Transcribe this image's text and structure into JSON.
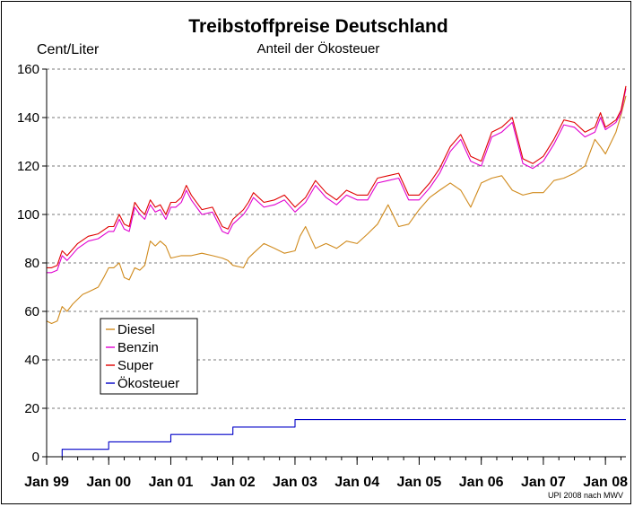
{
  "chart_data": {
    "type": "line",
    "title": "Treibstoffpreise Deutschland",
    "subtitle": "Anteil der Ökosteuer",
    "ylabel": "Cent/Liter",
    "xlabel": "",
    "source_note": "UPI 2008 nach MWV",
    "ylim": [
      0,
      160
    ],
    "yticks": [
      0,
      20,
      40,
      60,
      80,
      100,
      120,
      140,
      160
    ],
    "x_range": [
      1999.0,
      2008.33
    ],
    "xtick_positions": [
      1999,
      2000,
      2001,
      2002,
      2003,
      2004,
      2005,
      2006,
      2007,
      2008
    ],
    "xtick_labels": [
      "Jan 99",
      "Jan 00",
      "Jan 01",
      "Jan 02",
      "Jan 03",
      "Jan 04",
      "Jan 05",
      "Jan 06",
      "Jan 07",
      "Jan 08"
    ],
    "grid": "horizontal dashed",
    "legend_position": "lower-left",
    "series": [
      {
        "name": "Diesel",
        "color": "#d08a1c",
        "x": [
          1999.0,
          1999.08,
          1999.17,
          1999.25,
          1999.33,
          1999.42,
          1999.5,
          1999.58,
          1999.67,
          1999.75,
          1999.83,
          1999.92,
          2000.0,
          2000.08,
          2000.17,
          2000.25,
          2000.33,
          2000.42,
          2000.5,
          2000.58,
          2000.67,
          2000.75,
          2000.83,
          2000.92,
          2001.0,
          2001.17,
          2001.33,
          2001.5,
          2001.67,
          2001.83,
          2001.92,
          2002.0,
          2002.17,
          2002.25,
          2002.33,
          2002.5,
          2002.67,
          2002.83,
          2003.0,
          2003.08,
          2003.17,
          2003.33,
          2003.5,
          2003.67,
          2003.83,
          2004.0,
          2004.17,
          2004.33,
          2004.5,
          2004.67,
          2004.83,
          2005.0,
          2005.17,
          2005.33,
          2005.5,
          2005.67,
          2005.83,
          2006.0,
          2006.17,
          2006.33,
          2006.5,
          2006.67,
          2006.83,
          2007.0,
          2007.17,
          2007.33,
          2007.5,
          2007.67,
          2007.83,
          2007.92,
          2008.0,
          2008.17,
          2008.25,
          2008.33
        ],
        "y": [
          56,
          55,
          56,
          62,
          60,
          63,
          65,
          67,
          68,
          69,
          70,
          74,
          78,
          78,
          80,
          74,
          73,
          78,
          77,
          79,
          89,
          87,
          89,
          87,
          82,
          83,
          83,
          84,
          83,
          82,
          81,
          79,
          78,
          82,
          84,
          88,
          86,
          84,
          85,
          91,
          95,
          86,
          88,
          86,
          89,
          88,
          92,
          96,
          104,
          95,
          96,
          102,
          107,
          110,
          113,
          110,
          103,
          113,
          115,
          116,
          110,
          108,
          109,
          109,
          114,
          115,
          117,
          120,
          131,
          128,
          125,
          134,
          141,
          149
        ]
      },
      {
        "name": "Benzin",
        "color": "#e000d0",
        "x": [
          1999.0,
          1999.08,
          1999.17,
          1999.25,
          1999.33,
          1999.5,
          1999.67,
          1999.83,
          2000.0,
          2000.08,
          2000.17,
          2000.25,
          2000.33,
          2000.42,
          2000.5,
          2000.58,
          2000.67,
          2000.75,
          2000.83,
          2000.92,
          2001.0,
          2001.08,
          2001.17,
          2001.25,
          2001.33,
          2001.5,
          2001.67,
          2001.83,
          2001.92,
          2002.0,
          2002.17,
          2002.25,
          2002.33,
          2002.5,
          2002.67,
          2002.83,
          2003.0,
          2003.17,
          2003.33,
          2003.5,
          2003.67,
          2003.83,
          2004.0,
          2004.17,
          2004.33,
          2004.5,
          2004.67,
          2004.83,
          2005.0,
          2005.17,
          2005.33,
          2005.5,
          2005.67,
          2005.83,
          2006.0,
          2006.17,
          2006.33,
          2006.5,
          2006.67,
          2006.83,
          2007.0,
          2007.17,
          2007.33,
          2007.5,
          2007.67,
          2007.83,
          2007.92,
          2008.0,
          2008.17,
          2008.25,
          2008.33
        ],
        "y": [
          76,
          76,
          77,
          83,
          81,
          86,
          89,
          90,
          93,
          93,
          98,
          94,
          93,
          103,
          100,
          98,
          104,
          101,
          102,
          98,
          103,
          103,
          105,
          110,
          106,
          100,
          101,
          93,
          92,
          96,
          100,
          103,
          107,
          103,
          104,
          106,
          101,
          105,
          112,
          107,
          104,
          108,
          106,
          106,
          113,
          114,
          115,
          106,
          106,
          111,
          117,
          126,
          131,
          122,
          120,
          132,
          134,
          138,
          121,
          119,
          122,
          129,
          137,
          136,
          132,
          134,
          140,
          135,
          138,
          142,
          152
        ]
      },
      {
        "name": "Super",
        "color": "#e00000",
        "x": [
          1999.0,
          1999.08,
          1999.17,
          1999.25,
          1999.33,
          1999.5,
          1999.67,
          1999.83,
          2000.0,
          2000.08,
          2000.17,
          2000.25,
          2000.33,
          2000.42,
          2000.5,
          2000.58,
          2000.67,
          2000.75,
          2000.83,
          2000.92,
          2001.0,
          2001.08,
          2001.17,
          2001.25,
          2001.33,
          2001.5,
          2001.67,
          2001.83,
          2001.92,
          2002.0,
          2002.17,
          2002.25,
          2002.33,
          2002.5,
          2002.67,
          2002.83,
          2003.0,
          2003.17,
          2003.33,
          2003.5,
          2003.67,
          2003.83,
          2004.0,
          2004.17,
          2004.33,
          2004.5,
          2004.67,
          2004.83,
          2005.0,
          2005.17,
          2005.33,
          2005.5,
          2005.67,
          2005.83,
          2006.0,
          2006.17,
          2006.33,
          2006.5,
          2006.67,
          2006.83,
          2007.0,
          2007.17,
          2007.33,
          2007.5,
          2007.67,
          2007.83,
          2007.92,
          2008.0,
          2008.17,
          2008.25,
          2008.33
        ],
        "y": [
          78,
          78,
          79,
          85,
          83,
          88,
          91,
          92,
          95,
          95,
          100,
          96,
          95,
          105,
          102,
          100,
          106,
          103,
          104,
          100,
          105,
          105,
          107,
          112,
          108,
          102,
          103,
          95,
          94,
          98,
          102,
          105,
          109,
          105,
          106,
          108,
          103,
          107,
          114,
          109,
          106,
          110,
          108,
          108,
          115,
          116,
          117,
          108,
          108,
          113,
          119,
          128,
          133,
          124,
          122,
          134,
          136,
          140,
          123,
          121,
          124,
          131,
          139,
          138,
          134,
          136,
          142,
          136,
          139,
          143,
          153
        ]
      },
      {
        "name": "Ökosteuer",
        "color": "#0000c8",
        "x": [
          1999.25,
          1999.25,
          2000.0,
          2000.0,
          2001.0,
          2001.0,
          2002.0,
          2002.0,
          2003.0,
          2003.0,
          2008.33
        ],
        "y": [
          0,
          3.07,
          3.07,
          6.14,
          6.14,
          9.2,
          9.2,
          12.27,
          12.27,
          15.34,
          15.34
        ]
      }
    ]
  }
}
